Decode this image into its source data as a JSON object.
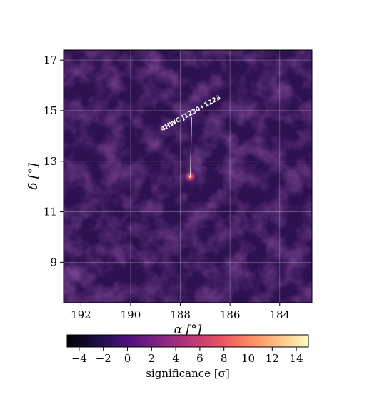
{
  "chart_data": {
    "type": "heatmap",
    "title": "",
    "xlabel": "α [°]",
    "ylabel": "δ [°]",
    "xlim": [
      192.7,
      182.7
    ],
    "ylim": [
      7.4,
      17.4
    ],
    "x_ticks": [
      192,
      190,
      188,
      186,
      184
    ],
    "y_ticks": [
      9,
      11,
      13,
      15,
      17
    ],
    "grid": true,
    "colormap": "magma",
    "colorbar": {
      "label": "significance [σ]",
      "range": [
        -5,
        15
      ],
      "ticks": [
        -4,
        -2,
        0,
        2,
        4,
        6,
        8,
        10,
        12,
        14
      ],
      "tick_labels": [
        "−4",
        "−2",
        "0",
        "2",
        "4",
        "6",
        "8",
        "10",
        "12",
        "14"
      ],
      "orientation": "horizontal"
    },
    "background_significance_range": [
      -3,
      3
    ],
    "sources": [
      {
        "name": "4HWC J1230+1223",
        "ra": 187.6,
        "dec": 12.4,
        "significance": 6
      }
    ]
  }
}
